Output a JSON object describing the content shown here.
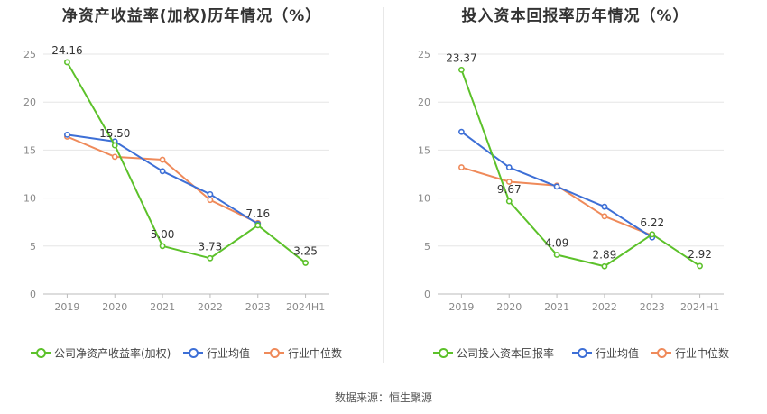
{
  "footer": {
    "source": "数据来源：恒生聚源"
  },
  "chart_data": [
    {
      "type": "line",
      "title": "净资产收益率(加权)历年情况（%）",
      "categories": [
        "2019",
        "2020",
        "2021",
        "2022",
        "2023",
        "2024H1"
      ],
      "ylim": [
        0,
        25
      ],
      "yticks": [
        0,
        5,
        10,
        15,
        20,
        25
      ],
      "grid": true,
      "legend_position": "bottom",
      "series": [
        {
          "name": "公司净资产收益率(加权)",
          "color": "#5cc12a",
          "values": [
            24.16,
            15.5,
            5.0,
            3.73,
            7.16,
            3.25
          ],
          "labels": [
            "24.16",
            "15.50",
            "5.00",
            "3.73",
            "7.16",
            "3.25"
          ]
        },
        {
          "name": "行业均值",
          "color": "#3d6fd6",
          "values": [
            16.6,
            15.9,
            12.8,
            10.4,
            7.3,
            null
          ]
        },
        {
          "name": "行业中位数",
          "color": "#ef8a5a",
          "values": [
            16.4,
            14.3,
            14.0,
            9.8,
            7.4,
            null
          ]
        }
      ]
    },
    {
      "type": "line",
      "title": "投入资本回报率历年情况（%）",
      "categories": [
        "2019",
        "2020",
        "2021",
        "2022",
        "2023",
        "2024H1"
      ],
      "ylim": [
        0,
        25
      ],
      "yticks": [
        0,
        5,
        10,
        15,
        20,
        25
      ],
      "grid": true,
      "legend_position": "bottom",
      "series": [
        {
          "name": "公司投入资本回报率",
          "color": "#5cc12a",
          "values": [
            23.37,
            9.67,
            4.09,
            2.89,
            6.22,
            2.92
          ],
          "labels": [
            "23.37",
            "9.67",
            "4.09",
            "2.89",
            "6.22",
            "2.92"
          ]
        },
        {
          "name": "行业均值",
          "color": "#3d6fd6",
          "values": [
            16.9,
            13.2,
            11.2,
            9.1,
            5.9,
            null
          ]
        },
        {
          "name": "行业中位数",
          "color": "#ef8a5a",
          "values": [
            13.2,
            11.7,
            11.3,
            8.1,
            6.1,
            null
          ]
        }
      ]
    }
  ]
}
